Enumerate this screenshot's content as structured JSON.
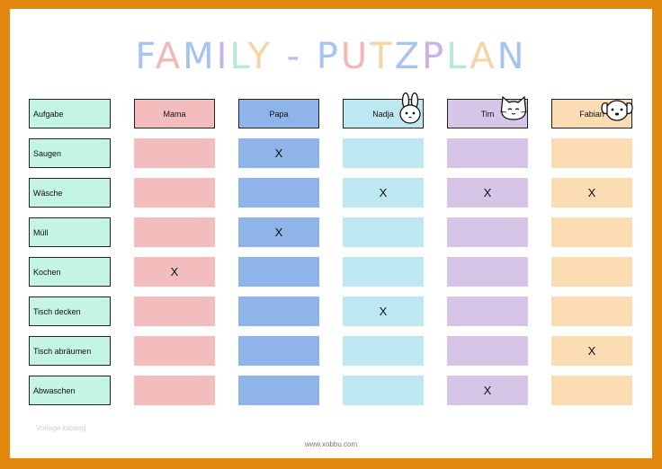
{
  "title_letters": [
    {
      "ch": "F",
      "color": "#a7c4ee"
    },
    {
      "ch": "A",
      "color": "#f2b8b8"
    },
    {
      "ch": "M",
      "color": "#a7c4ee"
    },
    {
      "ch": "I",
      "color": "#c9b3e6"
    },
    {
      "ch": "L",
      "color": "#b7e9d4"
    },
    {
      "ch": "Y",
      "color": "#f7d3a8"
    },
    {
      "ch": " ",
      "color": "#ffffff"
    },
    {
      "ch": "-",
      "color": "#c9b3e6"
    },
    {
      "ch": " ",
      "color": "#ffffff"
    },
    {
      "ch": "P",
      "color": "#a7c4ee"
    },
    {
      "ch": "U",
      "color": "#f2b8b8"
    },
    {
      "ch": "T",
      "color": "#f7d3a8"
    },
    {
      "ch": "Z",
      "color": "#a7c4ee"
    },
    {
      "ch": "P",
      "color": "#c9b3e6"
    },
    {
      "ch": "L",
      "color": "#b7e9d4"
    },
    {
      "ch": "A",
      "color": "#f7d3a8"
    },
    {
      "ch": "N",
      "color": "#a7c4ee"
    }
  ],
  "task_header": "Aufgabe",
  "members": [
    {
      "name": "Mama",
      "header_color": "#f3bdbd",
      "cell_color": "#f3bdbd",
      "icon": ""
    },
    {
      "name": "Papa",
      "header_color": "#8fb4ea",
      "cell_color": "#8fb4ea",
      "icon": ""
    },
    {
      "name": "Nadja",
      "header_color": "#bde7f1",
      "cell_color": "#bde7f1",
      "icon": "bunny-icon"
    },
    {
      "name": "Tim",
      "header_color": "#d6c5e6",
      "cell_color": "#d6c5e6",
      "icon": "cat-icon"
    },
    {
      "name": "Fabian",
      "header_color": "#fcdcb3",
      "cell_color": "#fcdcb3",
      "icon": "dog-icon"
    }
  ],
  "tasks": [
    {
      "name": "Saugen",
      "marks": [
        "",
        "X",
        "",
        "",
        ""
      ]
    },
    {
      "name": "Wäsche",
      "marks": [
        "",
        "",
        "X",
        "X",
        "X"
      ]
    },
    {
      "name": "Müll",
      "marks": [
        "",
        "X",
        "",
        "",
        ""
      ]
    },
    {
      "name": "Kochen",
      "marks": [
        "X",
        "",
        "",
        "",
        ""
      ]
    },
    {
      "name": "Tisch decken",
      "marks": [
        "",
        "",
        "X",
        "",
        ""
      ]
    },
    {
      "name": "Tisch abräumen",
      "marks": [
        "",
        "",
        "",
        "",
        "X"
      ]
    },
    {
      "name": "Abwaschen",
      "marks": [
        "",
        "",
        "",
        "X",
        ""
      ]
    }
  ],
  "footer_url": "www.xobbu.com",
  "watermark": "Vorlage katalog"
}
